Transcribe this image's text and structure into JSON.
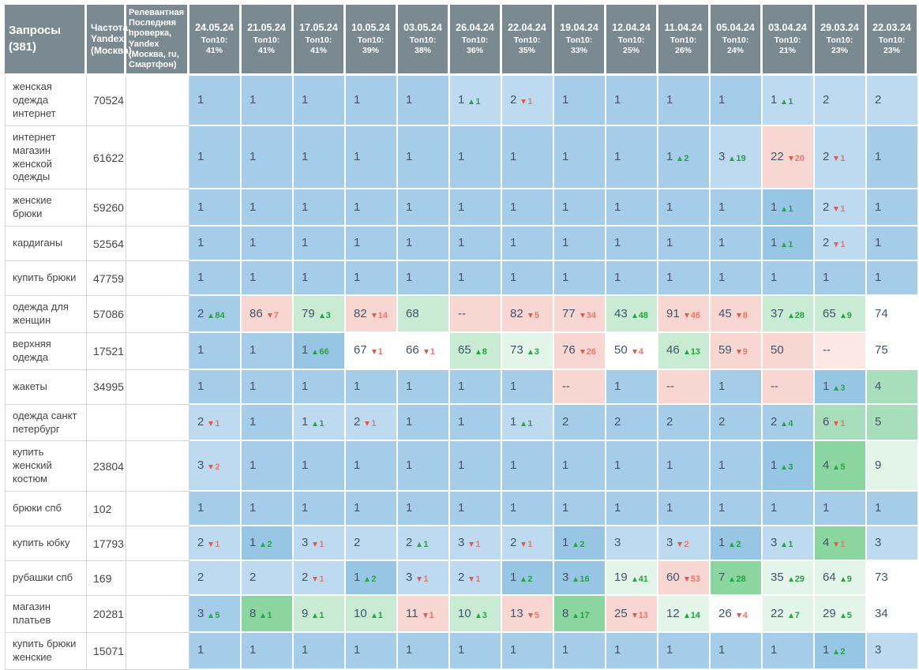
{
  "colors": {
    "header_bg": "#7b8a90",
    "value_text": "#42536a",
    "up_green": "#27a346",
    "down_red": "#ef756a",
    "cell": {
      "b": "#a5cce9",
      "bl": "#bddaf0",
      "bd": "#97c6e5",
      "p": "#f8d7d3",
      "pf": "#fbe7e4",
      "g1": "#8bd5a0",
      "gm": "#a8debb",
      "g2": "#c9ebd3",
      "g3": "#e3f4e8",
      "w": "#ffffff"
    }
  },
  "table": {
    "query_header": "Запросы",
    "query_count": "(381)",
    "freq_header": "Частота, Yandex (Москва)",
    "check_header": "Релевантная Последняя проверка, Yandex (Москва, ru, Смартфон)",
    "columns": [
      {
        "date": "24.05.24",
        "top10": "Топ10: 41%"
      },
      {
        "date": "21.05.24",
        "top10": "Топ10: 41%"
      },
      {
        "date": "17.05.24",
        "top10": "Топ10: 41%"
      },
      {
        "date": "10.05.24",
        "top10": "Топ10: 39%"
      },
      {
        "date": "03.05.24",
        "top10": "Топ10: 38%"
      },
      {
        "date": "26.04.24",
        "top10": "Топ10: 36%"
      },
      {
        "date": "22.04.24",
        "top10": "Топ10: 35%"
      },
      {
        "date": "19.04.24",
        "top10": "Топ10: 33%"
      },
      {
        "date": "12.04.24",
        "top10": "Топ10: 25%"
      },
      {
        "date": "11.04.24",
        "top10": "Топ10: 26%"
      },
      {
        "date": "05.04.24",
        "top10": "Топ10: 24%"
      },
      {
        "date": "03.04.24",
        "top10": "Топ10: 21%"
      },
      {
        "date": "29.03.24",
        "top10": "Топ10: 23%"
      },
      {
        "date": "22.03.24",
        "top10": "Топ10: 23%"
      }
    ],
    "rows": [
      {
        "query": "женская одежда интернет",
        "freq": "70524",
        "check": "",
        "cells": [
          [
            "1",
            null,
            "b"
          ],
          [
            "1",
            null,
            "b"
          ],
          [
            "1",
            null,
            "b"
          ],
          [
            "1",
            null,
            "b"
          ],
          [
            "1",
            null,
            "b"
          ],
          [
            "1",
            "+1",
            "bl"
          ],
          [
            "2",
            "-1",
            "bl"
          ],
          [
            "1",
            null,
            "b"
          ],
          [
            "1",
            null,
            "b"
          ],
          [
            "1",
            null,
            "b"
          ],
          [
            "1",
            null,
            "b"
          ],
          [
            "1",
            "+1",
            "bl"
          ],
          [
            "2",
            null,
            "bl"
          ],
          [
            "2",
            null,
            "bl"
          ]
        ]
      },
      {
        "query": "интернет магазин женской одежды",
        "freq": "61622",
        "check": "",
        "cells": [
          [
            "1",
            null,
            "b"
          ],
          [
            "1",
            null,
            "b"
          ],
          [
            "1",
            null,
            "b"
          ],
          [
            "1",
            null,
            "b"
          ],
          [
            "1",
            null,
            "b"
          ],
          [
            "1",
            null,
            "b"
          ],
          [
            "1",
            null,
            "b"
          ],
          [
            "1",
            null,
            "b"
          ],
          [
            "1",
            null,
            "b"
          ],
          [
            "1",
            "+2",
            "b"
          ],
          [
            "3",
            "+19",
            "bl"
          ],
          [
            "22",
            "-20",
            "p"
          ],
          [
            "2",
            "-1",
            "bl"
          ],
          [
            "1",
            null,
            "b"
          ]
        ]
      },
      {
        "query": "женские брюки",
        "freq": "59260",
        "check": "",
        "cells": [
          [
            "1",
            null,
            "b"
          ],
          [
            "1",
            null,
            "b"
          ],
          [
            "1",
            null,
            "b"
          ],
          [
            "1",
            null,
            "b"
          ],
          [
            "1",
            null,
            "b"
          ],
          [
            "1",
            null,
            "b"
          ],
          [
            "1",
            null,
            "b"
          ],
          [
            "1",
            null,
            "b"
          ],
          [
            "1",
            null,
            "b"
          ],
          [
            "1",
            null,
            "b"
          ],
          [
            "1",
            null,
            "b"
          ],
          [
            "1",
            "+1",
            "bd"
          ],
          [
            "2",
            "-1",
            "bl"
          ],
          [
            "1",
            null,
            "b"
          ]
        ]
      },
      {
        "query": "кардиганы",
        "freq": "52564",
        "check": "",
        "cells": [
          [
            "1",
            null,
            "b"
          ],
          [
            "1",
            null,
            "b"
          ],
          [
            "1",
            null,
            "b"
          ],
          [
            "1",
            null,
            "b"
          ],
          [
            "1",
            null,
            "b"
          ],
          [
            "1",
            null,
            "b"
          ],
          [
            "1",
            null,
            "b"
          ],
          [
            "1",
            null,
            "b"
          ],
          [
            "1",
            null,
            "b"
          ],
          [
            "1",
            null,
            "b"
          ],
          [
            "1",
            null,
            "b"
          ],
          [
            "1",
            "+1",
            "bd"
          ],
          [
            "2",
            "-1",
            "bl"
          ],
          [
            "1",
            null,
            "b"
          ]
        ]
      },
      {
        "query": "купить брюки",
        "freq": "47759",
        "check": "",
        "cells": [
          [
            "1",
            null,
            "b"
          ],
          [
            "1",
            null,
            "b"
          ],
          [
            "1",
            null,
            "b"
          ],
          [
            "1",
            null,
            "b"
          ],
          [
            "1",
            null,
            "b"
          ],
          [
            "1",
            null,
            "b"
          ],
          [
            "1",
            null,
            "b"
          ],
          [
            "1",
            null,
            "b"
          ],
          [
            "1",
            null,
            "b"
          ],
          [
            "1",
            null,
            "b"
          ],
          [
            "1",
            null,
            "b"
          ],
          [
            "1",
            null,
            "b"
          ],
          [
            "1",
            null,
            "b"
          ],
          [
            "1",
            null,
            "b"
          ]
        ]
      },
      {
        "query": "одежда для женщин",
        "freq": "57086",
        "check": "",
        "cells": [
          [
            "2",
            "+84",
            "b"
          ],
          [
            "86",
            "-7",
            "p"
          ],
          [
            "79",
            "+3",
            "g2"
          ],
          [
            "82",
            "-14",
            "p"
          ],
          [
            "68",
            null,
            "g2"
          ],
          [
            "--",
            null,
            "p"
          ],
          [
            "82",
            "-5",
            "p"
          ],
          [
            "77",
            "-34",
            "p"
          ],
          [
            "43",
            "+48",
            "g2"
          ],
          [
            "91",
            "-46",
            "p"
          ],
          [
            "45",
            "-8",
            "p"
          ],
          [
            "37",
            "+28",
            "g2"
          ],
          [
            "65",
            "+9",
            "g2"
          ],
          [
            "74",
            null,
            "w"
          ]
        ]
      },
      {
        "query": "верхняя одежда",
        "freq": "17521",
        "check": "",
        "cells": [
          [
            "1",
            null,
            "b"
          ],
          [
            "1",
            null,
            "b"
          ],
          [
            "1",
            "+66",
            "bd"
          ],
          [
            "67",
            "-1",
            "w"
          ],
          [
            "66",
            "-1",
            "w"
          ],
          [
            "65",
            "+8",
            "g2"
          ],
          [
            "73",
            "+3",
            "g3"
          ],
          [
            "76",
            "-26",
            "p"
          ],
          [
            "50",
            "-4",
            "w"
          ],
          [
            "46",
            "+13",
            "g2"
          ],
          [
            "59",
            "-9",
            "p"
          ],
          [
            "50",
            null,
            "p"
          ],
          [
            "--",
            null,
            "pf"
          ],
          [
            "75",
            null,
            "w"
          ]
        ]
      },
      {
        "query": "жакеты",
        "freq": "34995",
        "check": "",
        "cells": [
          [
            "1",
            null,
            "b"
          ],
          [
            "1",
            null,
            "b"
          ],
          [
            "1",
            null,
            "b"
          ],
          [
            "1",
            null,
            "b"
          ],
          [
            "1",
            null,
            "b"
          ],
          [
            "1",
            null,
            "b"
          ],
          [
            "1",
            null,
            "b"
          ],
          [
            "--",
            null,
            "p"
          ],
          [
            "1",
            null,
            "b"
          ],
          [
            "--",
            null,
            "p"
          ],
          [
            "1",
            null,
            "b"
          ],
          [
            "--",
            null,
            "p"
          ],
          [
            "1",
            "+3",
            "bd"
          ],
          [
            "4",
            null,
            "gm"
          ]
        ]
      },
      {
        "query": "одежда санкт петербург",
        "freq": "",
        "check": "",
        "cells": [
          [
            "2",
            "-1",
            "bl"
          ],
          [
            "1",
            null,
            "b"
          ],
          [
            "1",
            "+1",
            "bl"
          ],
          [
            "2",
            "-1",
            "bl"
          ],
          [
            "1",
            null,
            "b"
          ],
          [
            "1",
            null,
            "b"
          ],
          [
            "1",
            "+1",
            "bl"
          ],
          [
            "2",
            null,
            "b"
          ],
          [
            "2",
            null,
            "b"
          ],
          [
            "2",
            null,
            "b"
          ],
          [
            "2",
            null,
            "b"
          ],
          [
            "2",
            "+4",
            "b"
          ],
          [
            "6",
            "-1",
            "gm"
          ],
          [
            "5",
            null,
            "gm"
          ]
        ]
      },
      {
        "query": "купить женский костюм",
        "freq": "23804",
        "check": "",
        "cells": [
          [
            "3",
            "-2",
            "bl"
          ],
          [
            "1",
            null,
            "b"
          ],
          [
            "1",
            null,
            "b"
          ],
          [
            "1",
            null,
            "b"
          ],
          [
            "1",
            null,
            "b"
          ],
          [
            "1",
            null,
            "b"
          ],
          [
            "1",
            null,
            "b"
          ],
          [
            "1",
            null,
            "b"
          ],
          [
            "1",
            null,
            "b"
          ],
          [
            "1",
            null,
            "b"
          ],
          [
            "1",
            null,
            "b"
          ],
          [
            "1",
            "+3",
            "bd"
          ],
          [
            "4",
            "+5",
            "g1"
          ],
          [
            "9",
            null,
            "g3"
          ]
        ]
      },
      {
        "query": "брюки спб",
        "freq": "102",
        "check": "",
        "cells": [
          [
            "1",
            null,
            "b"
          ],
          [
            "1",
            null,
            "b"
          ],
          [
            "1",
            null,
            "b"
          ],
          [
            "1",
            null,
            "b"
          ],
          [
            "1",
            null,
            "b"
          ],
          [
            "1",
            null,
            "b"
          ],
          [
            "1",
            null,
            "b"
          ],
          [
            "1",
            null,
            "b"
          ],
          [
            "1",
            null,
            "b"
          ],
          [
            "1",
            null,
            "b"
          ],
          [
            "1",
            null,
            "b"
          ],
          [
            "1",
            null,
            "b"
          ],
          [
            "1",
            null,
            "b"
          ],
          [
            "1",
            null,
            "b"
          ]
        ]
      },
      {
        "query": "купить юбку",
        "freq": "17793",
        "check": "",
        "cells": [
          [
            "2",
            "-1",
            "bl"
          ],
          [
            "1",
            "+2",
            "bd"
          ],
          [
            "3",
            "-1",
            "bl"
          ],
          [
            "2",
            null,
            "bl"
          ],
          [
            "2",
            "+1",
            "bl"
          ],
          [
            "3",
            "-1",
            "bl"
          ],
          [
            "2",
            "-1",
            "bl"
          ],
          [
            "1",
            "+2",
            "bd"
          ],
          [
            "3",
            null,
            "bl"
          ],
          [
            "3",
            "-2",
            "bl"
          ],
          [
            "1",
            "+2",
            "bd"
          ],
          [
            "3",
            "+1",
            "bl"
          ],
          [
            "4",
            "-1",
            "g1"
          ],
          [
            "3",
            null,
            "bl"
          ]
        ]
      },
      {
        "query": "рубашки спб",
        "freq": "169",
        "check": "",
        "cells": [
          [
            "2",
            null,
            "bl"
          ],
          [
            "2",
            null,
            "bl"
          ],
          [
            "2",
            "-1",
            "bl"
          ],
          [
            "1",
            "+2",
            "bd"
          ],
          [
            "3",
            "-1",
            "bl"
          ],
          [
            "2",
            "-1",
            "bl"
          ],
          [
            "1",
            "+2",
            "bd"
          ],
          [
            "3",
            "+16",
            "bd"
          ],
          [
            "19",
            "+41",
            "g3"
          ],
          [
            "60",
            "-53",
            "p"
          ],
          [
            "7",
            "+28",
            "g1"
          ],
          [
            "35",
            "+29",
            "g3"
          ],
          [
            "64",
            "+9",
            "g3"
          ],
          [
            "73",
            null,
            "w"
          ]
        ]
      },
      {
        "query": "магазин платьев",
        "freq": "20281",
        "check": "",
        "cells": [
          [
            "3",
            "+5",
            "b"
          ],
          [
            "8",
            "+1",
            "g1"
          ],
          [
            "9",
            "+1",
            "g2"
          ],
          [
            "10",
            "+1",
            "g2"
          ],
          [
            "11",
            "-1",
            "p"
          ],
          [
            "10",
            "+3",
            "g2"
          ],
          [
            "13",
            "-5",
            "p"
          ],
          [
            "8",
            "+17",
            "g1"
          ],
          [
            "25",
            "-13",
            "p"
          ],
          [
            "12",
            "+14",
            "g3"
          ],
          [
            "26",
            "-4",
            "w"
          ],
          [
            "22",
            "+7",
            "g3"
          ],
          [
            "29",
            "+5",
            "g3"
          ],
          [
            "34",
            null,
            "w"
          ]
        ]
      },
      {
        "query": "купить брюки женские",
        "freq": "15071",
        "check": "",
        "cells": [
          [
            "1",
            null,
            "b"
          ],
          [
            "1",
            null,
            "b"
          ],
          [
            "1",
            null,
            "b"
          ],
          [
            "1",
            null,
            "b"
          ],
          [
            "1",
            null,
            "b"
          ],
          [
            "1",
            null,
            "b"
          ],
          [
            "1",
            null,
            "b"
          ],
          [
            "1",
            null,
            "b"
          ],
          [
            "1",
            null,
            "b"
          ],
          [
            "1",
            null,
            "b"
          ],
          [
            "1",
            null,
            "b"
          ],
          [
            "1",
            null,
            "b"
          ],
          [
            "1",
            "+2",
            "bd"
          ],
          [
            "3",
            null,
            "bl"
          ]
        ]
      }
    ]
  }
}
